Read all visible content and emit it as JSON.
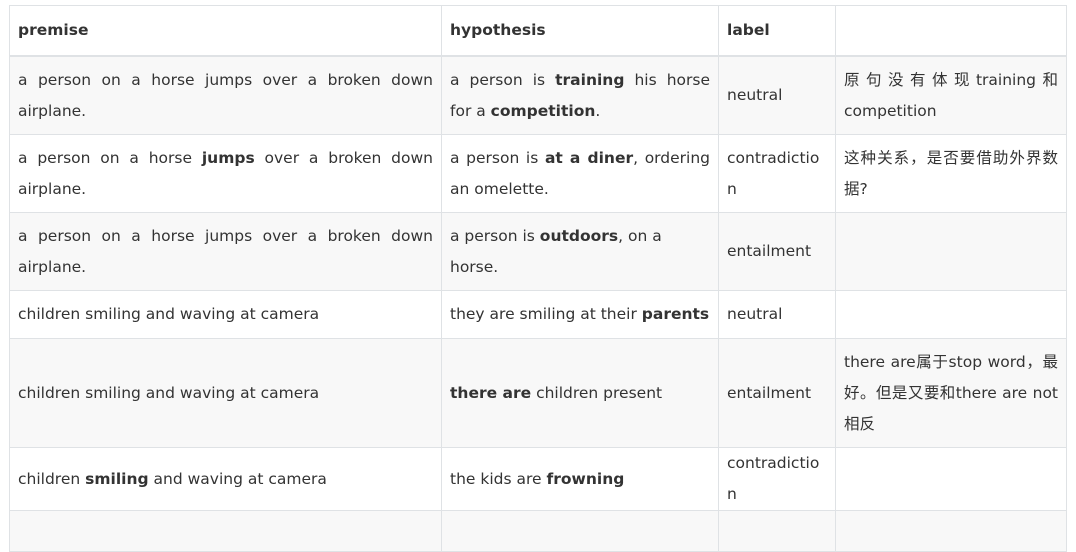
{
  "headers": [
    "premise",
    "hypothesis",
    "label",
    ""
  ],
  "rows": [
    {
      "premise": [
        {
          "t": "a person on a horse jumps over a broken down airplane.",
          "b": false
        }
      ],
      "hypothesis": [
        {
          "t": "a person is ",
          "b": false
        },
        {
          "t": "training",
          "b": true
        },
        {
          "t": " his horse for a ",
          "b": false
        },
        {
          "t": "competition",
          "b": true
        },
        {
          "t": ".",
          "b": false
        }
      ],
      "label": "neutral",
      "note": "原句没有体现training和competition"
    },
    {
      "premise": [
        {
          "t": "a person on a horse ",
          "b": false
        },
        {
          "t": "jumps",
          "b": true
        },
        {
          "t": " over a broken down airplane.",
          "b": false
        }
      ],
      "hypothesis": [
        {
          "t": "a person is ",
          "b": false
        },
        {
          "t": "at a diner",
          "b": true
        },
        {
          "t": ", ordering an omelette.",
          "b": false
        }
      ],
      "label": "contradiction",
      "note": "这种关系，是否要借助外界数据?"
    },
    {
      "premise": [
        {
          "t": "a person on a horse jumps over a broken down airplane.",
          "b": false
        }
      ],
      "hypothesis": [
        {
          "t": "a person is ",
          "b": false
        },
        {
          "t": "outdoors",
          "b": true
        },
        {
          "t": ", on a horse.",
          "b": false
        }
      ],
      "label": "entailment",
      "note": ""
    },
    {
      "premise": [
        {
          "t": "children smiling and waving at camera",
          "b": false
        }
      ],
      "hypothesis": [
        {
          "t": "they are smiling at their ",
          "b": false
        },
        {
          "t": "parents",
          "b": true
        }
      ],
      "label": "neutral",
      "note": ""
    },
    {
      "premise": [
        {
          "t": "children smiling and waving at camera",
          "b": false
        }
      ],
      "hypothesis": [
        {
          "t": "there are",
          "b": true
        },
        {
          "t": " children present",
          "b": false
        }
      ],
      "label": "entailment",
      "note": "there are属于stop word，最好。但是又要和there are not相反"
    },
    {
      "premise": [
        {
          "t": "children ",
          "b": false
        },
        {
          "t": "smiling",
          "b": true
        },
        {
          "t": " and waving at camera",
          "b": false
        }
      ],
      "hypothesis": [
        {
          "t": "the kids are ",
          "b": false
        },
        {
          "t": "frowning",
          "b": true
        }
      ],
      "label": "contradiction",
      "note": ""
    }
  ]
}
